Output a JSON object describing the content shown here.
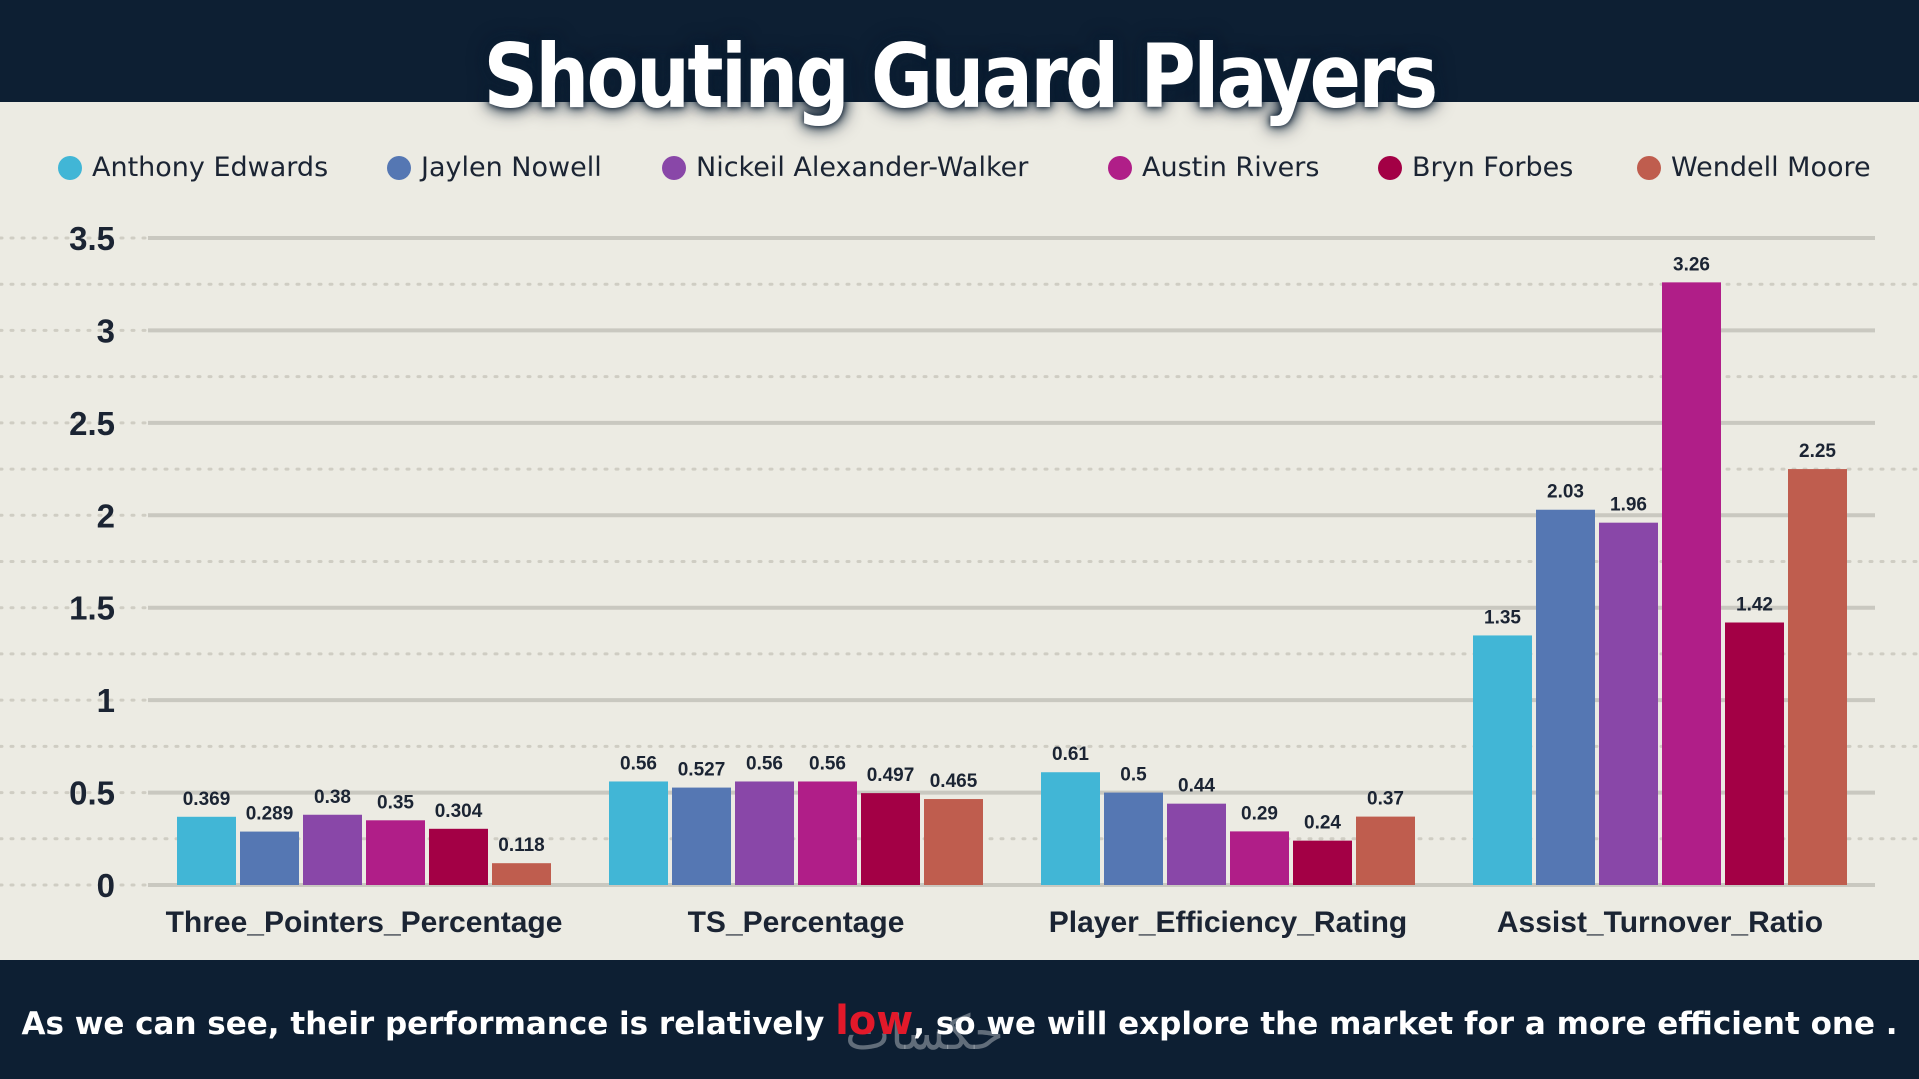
{
  "title": "Shouting Guard Players",
  "footer": {
    "before": "As we can see, their performance is relatively ",
    "highlight": "low",
    "after": ", so we will explore the market for a more efficient one ."
  },
  "watermark": "حكسات",
  "colors": {
    "background": "#ecebe3",
    "band": "#0d1f33",
    "highlight": "#e2192a"
  },
  "chart_data": {
    "type": "bar",
    "title": "Shouting Guard Players",
    "xlabel": "",
    "ylabel": "",
    "ylim": [
      0,
      3.5
    ],
    "yticks": [
      0,
      0.5,
      1,
      1.5,
      2,
      2.5,
      3,
      3.5
    ],
    "grid": true,
    "legend_position": "top",
    "categories": [
      "Three_Pointers_Percentage",
      "TS_Percentage",
      "Player_Efficiency_Rating",
      "Assist_Turnover_Ratio"
    ],
    "series": [
      {
        "name": "Anthony Edwards",
        "color": "#41b6d6",
        "values": [
          0.369,
          0.56,
          0.61,
          1.35
        ]
      },
      {
        "name": "Jaylen Nowell",
        "color": "#5577b3",
        "values": [
          0.289,
          0.527,
          0.5,
          2.03
        ]
      },
      {
        "name": "Nickeil Alexander-Walker",
        "color": "#8947a8",
        "values": [
          0.38,
          0.56,
          0.44,
          1.96
        ]
      },
      {
        "name": "Austin Rivers",
        "color": "#b01e88",
        "values": [
          0.35,
          0.56,
          0.29,
          3.26
        ]
      },
      {
        "name": "Bryn Forbes",
        "color": "#a30045",
        "values": [
          0.304,
          0.497,
          0.24,
          1.42
        ]
      },
      {
        "name": "Wendell Moore",
        "color": "#bf5d4e",
        "values": [
          0.118,
          0.465,
          0.37,
          2.25
        ]
      }
    ]
  }
}
